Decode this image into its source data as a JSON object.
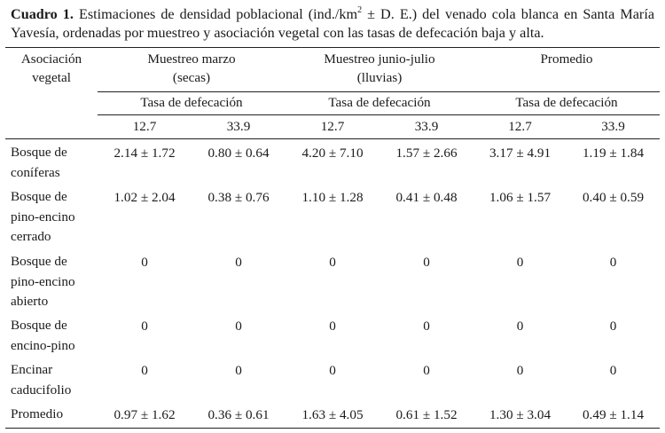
{
  "caption": {
    "number": "Cuadro 1.",
    "text_before_sup": " Estimaciones de densidad poblacional (ind./km",
    "sup": "2",
    "text_after_sup": " ± D. E.) del venado cola blanca en Santa María Yavesía, ordenadas por muestreo y asociación vegetal con las tasas de defecación baja y alta."
  },
  "header": {
    "stub_line1": "Asociación",
    "stub_line2": "vegetal",
    "groups": [
      {
        "line1": "Muestreo marzo",
        "line2": "(secas)"
      },
      {
        "line1": "Muestreo junio-julio",
        "line2": "(lluvias)"
      },
      {
        "line1": "Promedio",
        "line2": ""
      }
    ],
    "subheader": "Tasa de defecación",
    "rates": [
      "12.7",
      "33.9"
    ]
  },
  "rows": [
    {
      "label": [
        "Bosque de",
        "coníferas"
      ],
      "values": [
        "2.14 ± 1.72",
        "0.80 ± 0.64",
        "4.20 ± 7.10",
        "1.57 ± 2.66",
        "3.17 ± 4.91",
        "1.19 ± 1.84"
      ]
    },
    {
      "label": [
        "Bosque de",
        "pino-encino",
        "cerrado"
      ],
      "values": [
        "1.02 ± 2.04",
        "0.38 ± 0.76",
        "1.10 ± 1.28",
        "0.41 ± 0.48",
        "1.06 ± 1.57",
        "0.40 ± 0.59"
      ]
    },
    {
      "label": [
        "Bosque de",
        "pino-encino",
        "abierto"
      ],
      "values": [
        "0",
        "0",
        "0",
        "0",
        "0",
        "0"
      ]
    },
    {
      "label": [
        "Bosque de",
        "encino-pino"
      ],
      "values": [
        "0",
        "0",
        "0",
        "0",
        "0",
        "0"
      ]
    },
    {
      "label": [
        "Encinar",
        "caducifolio"
      ],
      "values": [
        "0",
        "0",
        "0",
        "0",
        "0",
        "0"
      ]
    },
    {
      "label": [
        "Promedio"
      ],
      "values": [
        "0.97 ± 1.62",
        "0.36 ± 0.61",
        "1.63 ± 4.05",
        "0.61 ± 1.52",
        "1.30 ± 3.04",
        "0.49 ± 1.14"
      ]
    }
  ]
}
